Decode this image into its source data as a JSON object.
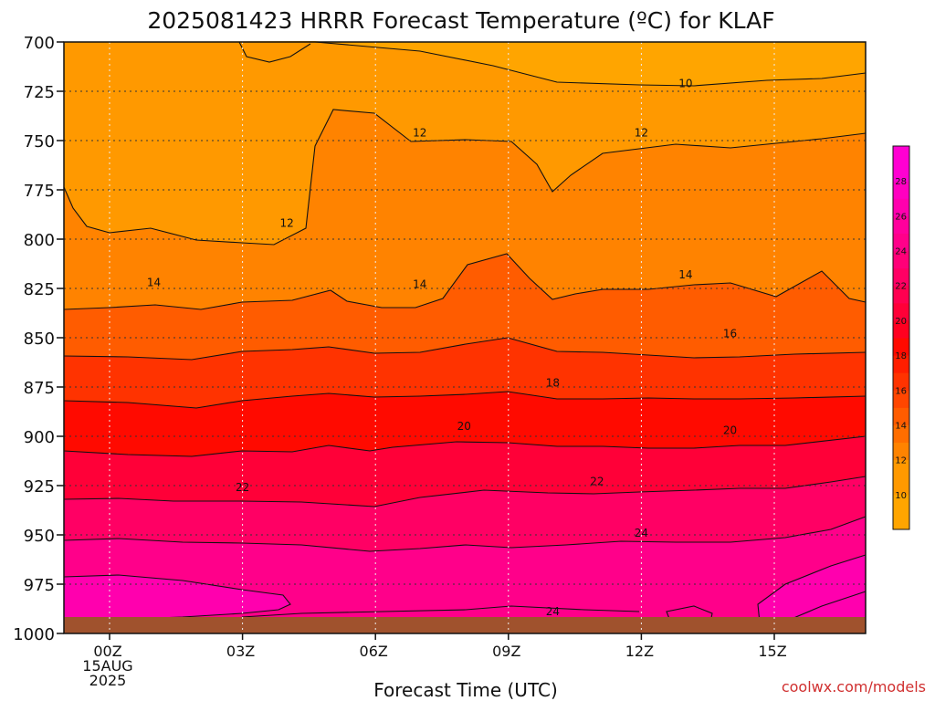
{
  "title": "2025081423 HRRR Forecast Temperature (ºC) for KLAF",
  "xlabel": "Forecast Time (UTC)",
  "credit": "coolwx.com/models",
  "chart_data": {
    "type": "heatmap",
    "title": "2025081423 HRRR Forecast Temperature (ºC) for KLAF",
    "xlabel": "Forecast Time (UTC)",
    "ylabel": "",
    "y_scale": "pressure (hPa), inverted",
    "ylim": [
      1000,
      700
    ],
    "y_ticks": [
      700,
      725,
      750,
      775,
      800,
      825,
      850,
      875,
      900,
      925,
      950,
      975,
      1000
    ],
    "x_ticks": [
      {
        "label": "00Z",
        "sub": [
          "15AUG",
          "2025"
        ]
      },
      {
        "label": "03Z",
        "sub": []
      },
      {
        "label": "06Z",
        "sub": []
      },
      {
        "label": "09Z",
        "sub": []
      },
      {
        "label": "12Z",
        "sub": []
      },
      {
        "label": "15Z",
        "sub": []
      }
    ],
    "grid": true,
    "colorbar": {
      "ticks": [
        10,
        12,
        14,
        16,
        18,
        20,
        22,
        24,
        26,
        28
      ],
      "bands": [
        {
          "from": 8,
          "to": 10,
          "color": "#FFA500"
        },
        {
          "from": 10,
          "to": 12,
          "color": "#FF9900"
        },
        {
          "from": 12,
          "to": 13,
          "color": "#FF8300"
        },
        {
          "from": 13,
          "to": 14,
          "color": "#FF6E00"
        },
        {
          "from": 14,
          "to": 15,
          "color": "#FF5C00"
        },
        {
          "from": 15,
          "to": 16,
          "color": "#FF4600"
        },
        {
          "from": 16,
          "to": 17,
          "color": "#FF3300"
        },
        {
          "from": 17,
          "to": 18,
          "color": "#FF1E00"
        },
        {
          "from": 18,
          "to": 19,
          "color": "#FF0A00"
        },
        {
          "from": 19,
          "to": 20,
          "color": "#FF0020"
        },
        {
          "from": 20,
          "to": 21,
          "color": "#FF0038"
        },
        {
          "from": 21,
          "to": 22,
          "color": "#FF0050"
        },
        {
          "from": 22,
          "to": 23,
          "color": "#FF0064"
        },
        {
          "from": 23,
          "to": 24,
          "color": "#FF0078"
        },
        {
          "from": 24,
          "to": 25,
          "color": "#FF008A"
        },
        {
          "from": 25,
          "to": 26,
          "color": "#FF009C"
        },
        {
          "from": 26,
          "to": 27,
          "color": "#FF00AE"
        },
        {
          "from": 27,
          "to": 28,
          "color": "#FF00C0"
        },
        {
          "from": 28,
          "to": 30,
          "color": "#FF00D2"
        }
      ]
    },
    "contours": [
      {
        "level": 10,
        "label_positions": [
          {
            "hour": 13.0,
            "p": 721
          }
        ]
      },
      {
        "level": 12,
        "label_positions": [
          {
            "hour": 4.0,
            "p": 792
          },
          {
            "hour": 7.0,
            "p": 746
          },
          {
            "hour": 12.0,
            "p": 746
          }
        ]
      },
      {
        "level": 14,
        "label_positions": [
          {
            "hour": 1.0,
            "p": 822
          },
          {
            "hour": 7.0,
            "p": 823
          },
          {
            "hour": 13.0,
            "p": 818
          }
        ]
      },
      {
        "level": 16,
        "label_positions": [
          {
            "hour": 14.0,
            "p": 848
          }
        ]
      },
      {
        "level": 18,
        "label_positions": [
          {
            "hour": 10.0,
            "p": 873
          }
        ]
      },
      {
        "level": 20,
        "label_positions": [
          {
            "hour": 8.0,
            "p": 895
          },
          {
            "hour": 14.0,
            "p": 897
          }
        ]
      },
      {
        "level": 22,
        "label_positions": [
          {
            "hour": 3.0,
            "p": 926
          },
          {
            "hour": 11.0,
            "p": 923
          }
        ]
      },
      {
        "level": 24,
        "label_positions": [
          {
            "hour": 12.0,
            "p": 949
          },
          {
            "hour": 10.0,
            "p": 989
          }
        ]
      }
    ]
  }
}
